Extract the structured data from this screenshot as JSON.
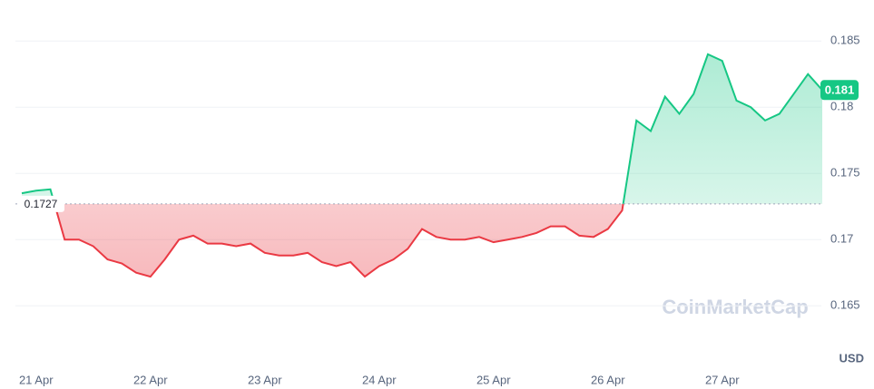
{
  "chart_data": {
    "type": "line",
    "categories": [
      null,
      "21 Apr",
      null,
      null,
      null,
      null,
      null,
      null,
      null,
      "22 Apr",
      null,
      null,
      null,
      null,
      null,
      null,
      null,
      "23 Apr",
      null,
      null,
      null,
      null,
      null,
      null,
      null,
      "24 Apr",
      null,
      null,
      null,
      null,
      null,
      null,
      null,
      "25 Apr",
      null,
      null,
      null,
      null,
      null,
      null,
      null,
      "26 Apr",
      null,
      null,
      null,
      null,
      null,
      null,
      null,
      "27 Apr",
      null,
      null,
      null,
      null,
      null,
      null,
      null
    ],
    "series": [
      {
        "values": [
          0.1735,
          0.1737,
          0.1738,
          0.17,
          0.17,
          0.1695,
          0.1685,
          0.1682,
          0.1675,
          0.1672,
          0.1685,
          0.17,
          0.1703,
          0.1697,
          0.1697,
          0.1695,
          0.1697,
          0.169,
          0.1688,
          0.1688,
          0.169,
          0.1683,
          0.168,
          0.1683,
          0.1672,
          0.168,
          0.1685,
          0.1693,
          0.1708,
          0.1702,
          0.17,
          0.17,
          0.1702,
          0.1698,
          0.17,
          0.1702,
          0.1705,
          0.171,
          0.171,
          0.1703,
          0.1702,
          0.1708,
          0.1722,
          0.179,
          0.1782,
          0.1808,
          0.1795,
          0.181,
          0.184,
          0.1835,
          0.1805,
          0.18,
          0.179,
          0.1795,
          0.181,
          0.1825,
          0.1813
        ]
      }
    ],
    "up_color": "#16c784",
    "down_color": "#ea3943",
    "baseline": {
      "value": 0.1727,
      "label": "0.1727"
    },
    "current_price": {
      "value": 0.1813,
      "label": "0.181"
    },
    "ylim": [
      0.1607,
      0.1881
    ],
    "yticks": [
      0.165,
      0.17,
      0.175,
      0.18,
      0.185
    ],
    "currency": "USD",
    "watermark": "CoinMarketCap",
    "grid": true
  }
}
